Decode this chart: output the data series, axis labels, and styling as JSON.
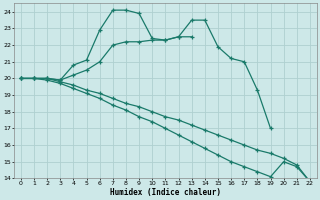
{
  "xlabel": "Humidex (Indice chaleur)",
  "bg_color": "#cde8e8",
  "grid_color": "#afd0d0",
  "line_color": "#1a7a6a",
  "xlim": [
    -0.5,
    22.5
  ],
  "ylim": [
    14,
    24.5
  ],
  "xticks": [
    0,
    1,
    2,
    3,
    4,
    5,
    6,
    7,
    8,
    9,
    10,
    11,
    12,
    13,
    14,
    15,
    16,
    17,
    18,
    19,
    20,
    21,
    22
  ],
  "yticks": [
    14,
    15,
    16,
    17,
    18,
    19,
    20,
    21,
    22,
    23,
    24
  ],
  "line1_x": [
    0,
    1,
    2,
    3,
    4,
    5,
    6,
    7,
    8,
    9,
    10,
    11,
    12,
    13
  ],
  "line1_y": [
    20,
    20,
    20.0,
    19.9,
    20.8,
    21.1,
    22.9,
    24.1,
    24.1,
    23.9,
    22.4,
    22.3,
    22.5,
    22.5
  ],
  "line2_x": [
    0,
    1,
    2,
    3,
    4,
    5,
    6,
    7,
    8,
    9,
    10,
    11,
    12,
    13,
    14,
    15,
    16,
    17,
    18,
    19
  ],
  "line2_y": [
    20,
    20,
    20.0,
    19.9,
    20.2,
    20.5,
    21.0,
    22.0,
    22.2,
    22.2,
    22.3,
    22.3,
    22.5,
    23.5,
    23.5,
    21.9,
    21.2,
    21.0,
    19.3,
    17.0
  ],
  "line3_x": [
    0,
    1,
    2,
    3,
    4,
    5,
    6,
    7,
    8,
    9,
    10,
    11,
    12,
    13,
    14,
    15,
    16,
    17,
    18,
    19,
    20,
    21,
    22
  ],
  "line3_y": [
    20,
    20,
    20.0,
    19.8,
    19.6,
    19.3,
    19.1,
    18.8,
    18.5,
    18.3,
    18.0,
    17.7,
    17.5,
    17.2,
    16.9,
    16.6,
    16.3,
    16.0,
    15.7,
    15.5,
    15.2,
    14.8,
    13.8
  ],
  "line4_x": [
    0,
    1,
    2,
    3,
    4,
    5,
    6,
    7,
    8,
    9,
    10,
    11,
    12,
    13,
    14,
    15,
    16,
    17,
    18,
    19,
    20,
    21,
    22
  ],
  "line4_y": [
    20,
    20,
    19.9,
    19.7,
    19.4,
    19.1,
    18.8,
    18.4,
    18.1,
    17.7,
    17.4,
    17.0,
    16.6,
    16.2,
    15.8,
    15.4,
    15.0,
    14.7,
    14.4,
    14.1,
    15.0,
    14.7,
    13.8
  ]
}
